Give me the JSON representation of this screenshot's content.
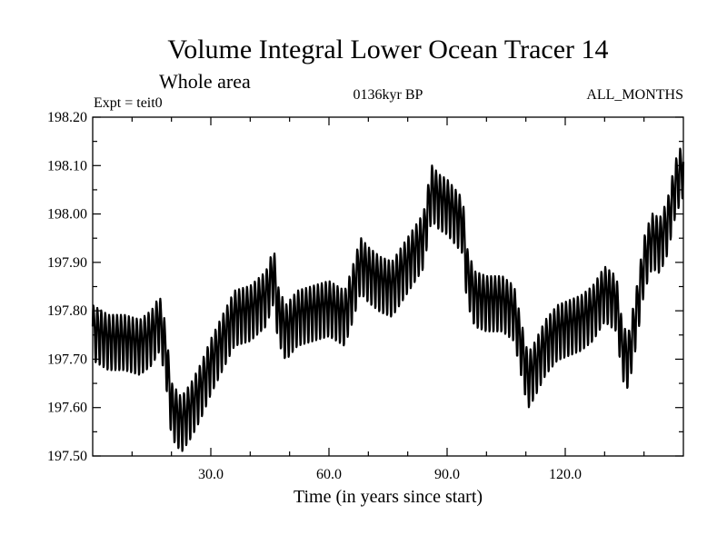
{
  "chart_data": {
    "type": "line",
    "title": "Volume Integral Lower Ocean Tracer 14",
    "subtitle": "Whole area",
    "left_label": "Expt = teit0",
    "center_label": "0136kyr BP",
    "right_label": "ALL_MONTHS",
    "xlabel": "Time (in years since start)",
    "ylabel": "",
    "xlim": [
      0,
      150
    ],
    "ylim": [
      197.5,
      198.2
    ],
    "x_ticks": [
      30,
      60,
      90,
      120
    ],
    "x_tick_labels": [
      "30.0",
      "60.0",
      "90.0",
      "120.0"
    ],
    "y_ticks": [
      197.5,
      197.6,
      197.7,
      197.8,
      197.9,
      198.0,
      198.1,
      198.2
    ],
    "y_tick_labels": [
      "197.50",
      "197.60",
      "197.70",
      "197.80",
      "197.90",
      "198.00",
      "198.10",
      "198.20"
    ],
    "grid": false,
    "series": [
      {
        "name": "Lower Ocean Tracer 14",
        "sampling": "monthly, annual cycle",
        "annual_cycle_amplitude": 0.055,
        "trend_x": [
          0,
          4,
          8,
          12,
          15,
          17,
          18.5,
          20,
          22.5,
          25,
          27.5,
          30,
          33,
          36,
          40,
          44,
          46,
          47,
          49,
          52,
          56,
          60,
          64,
          66,
          68,
          70,
          73,
          76,
          80,
          84,
          86,
          88,
          90,
          92,
          94,
          95,
          97,
          100,
          104,
          107,
          109,
          110.5,
          112,
          115,
          118,
          121,
          124,
          127,
          130,
          133,
          134.5,
          136,
          138,
          140,
          142,
          144,
          146,
          148,
          150
        ],
        "trend_y": [
          197.76,
          197.74,
          197.74,
          197.73,
          197.75,
          197.78,
          197.72,
          197.6,
          197.57,
          197.6,
          197.64,
          197.69,
          197.74,
          197.79,
          197.8,
          197.83,
          197.88,
          197.8,
          197.76,
          197.79,
          197.8,
          197.81,
          197.79,
          197.84,
          197.9,
          197.88,
          197.86,
          197.85,
          197.9,
          197.95,
          198.05,
          198.03,
          198.02,
          198.0,
          197.98,
          197.88,
          197.83,
          197.82,
          197.82,
          197.8,
          197.72,
          197.66,
          197.68,
          197.73,
          197.76,
          197.77,
          197.78,
          197.8,
          197.84,
          197.82,
          197.72,
          197.7,
          197.79,
          197.9,
          197.95,
          197.94,
          197.98,
          198.06,
          198.1
        ]
      }
    ]
  }
}
